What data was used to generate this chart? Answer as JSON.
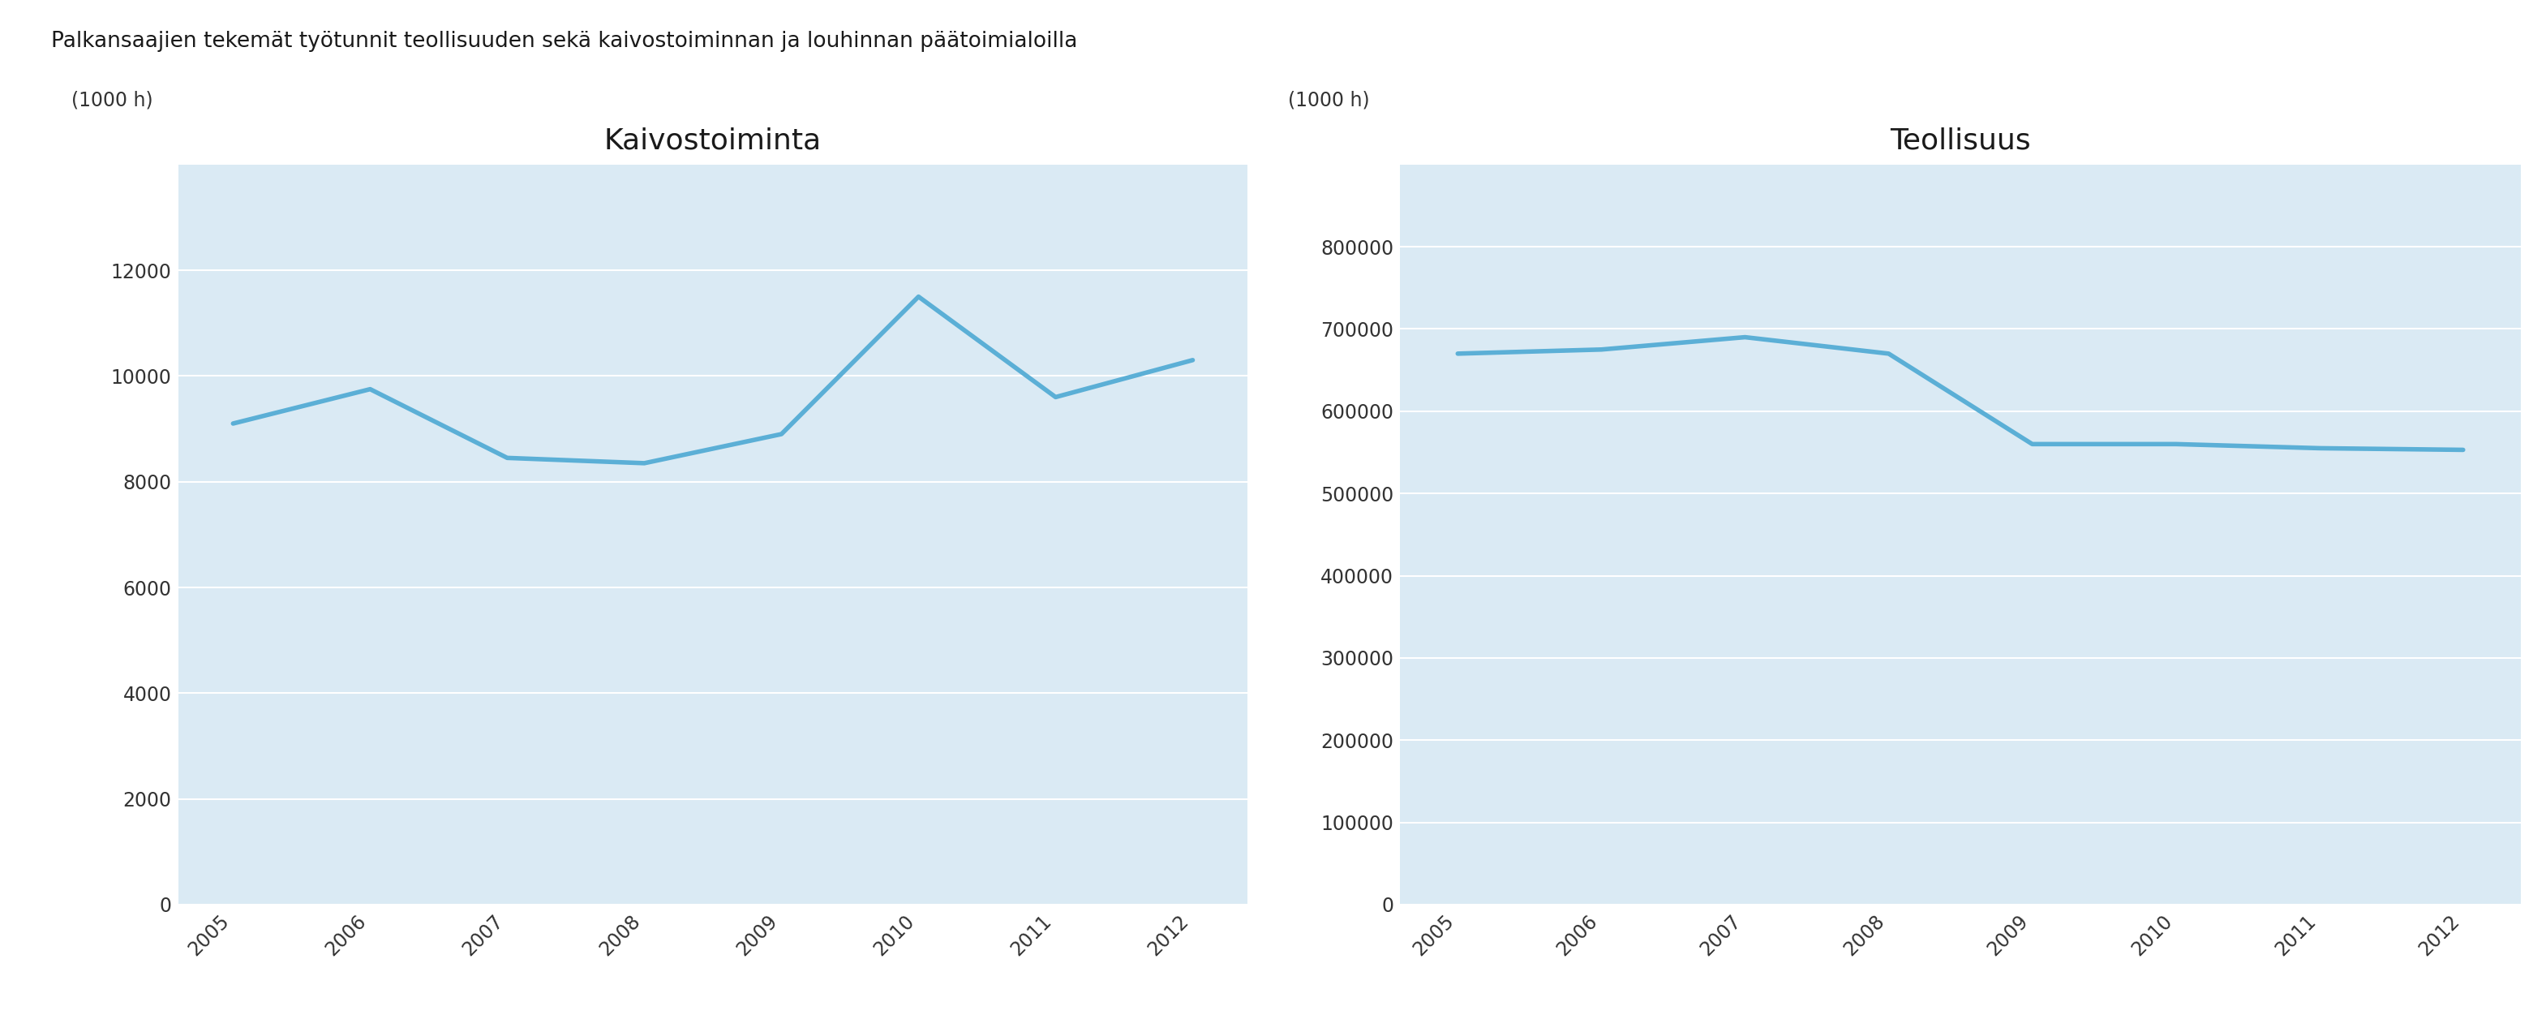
{
  "title": "Palkansaajien tekemät työtunnit teollisuuden sekä kaivostoiminnan ja louhinnan päätoimialoilla",
  "years": [
    2005,
    2006,
    2007,
    2008,
    2009,
    2010,
    2011,
    2012
  ],
  "kaivos_values": [
    9100,
    9750,
    8450,
    8350,
    8900,
    11500,
    9600,
    10300
  ],
  "teollisuus_values": [
    670000,
    675000,
    690000,
    670000,
    560000,
    560000,
    555000,
    553000
  ],
  "kaivos_label": "Kaivostoiminta",
  "teollisuus_label": "Teollisuus",
  "unit_label": "(1000 h)",
  "kaivos_ylim": [
    0,
    14000
  ],
  "teollisuus_ylim": [
    0,
    900000
  ],
  "kaivos_yticks": [
    0,
    2000,
    4000,
    6000,
    8000,
    10000,
    12000
  ],
  "teollisuus_yticks": [
    0,
    100000,
    200000,
    300000,
    400000,
    500000,
    600000,
    700000,
    800000
  ],
  "line_color": "#5bafd6",
  "line_width": 4.0,
  "bg_color": "#daeaf4",
  "fig_bg_color": "#ffffff",
  "grid_color": "#ffffff",
  "title_fontsize": 19,
  "unit_label_fontsize": 17,
  "tick_fontsize": 17,
  "subplot_title_fontsize": 26
}
